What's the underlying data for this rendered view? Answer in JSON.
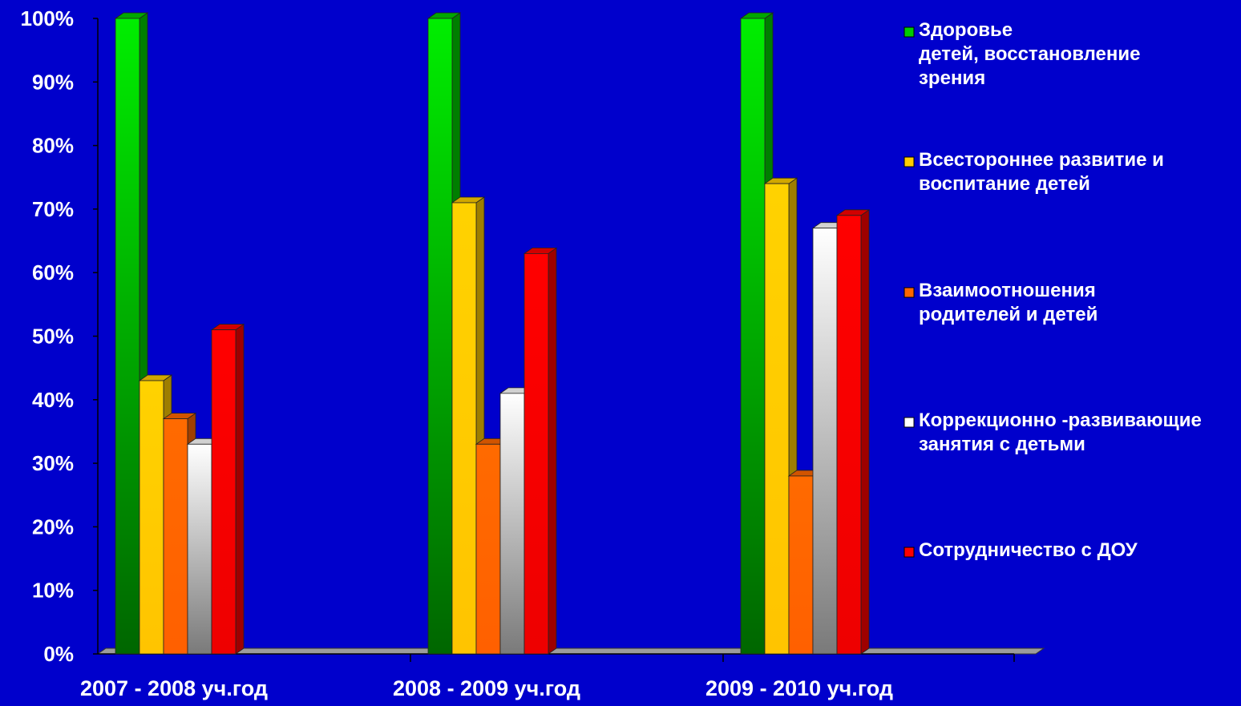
{
  "chart_data": {
    "type": "bar",
    "title": "",
    "xlabel": "",
    "ylabel": "",
    "ylim": [
      0,
      100
    ],
    "yticks": [
      "0%",
      "10%",
      "20%",
      "30%",
      "40%",
      "50%",
      "60%",
      "70%",
      "80%",
      "90%",
      "100%"
    ],
    "categories": [
      "2007 - 2008 уч.год",
      "2008 - 2009 уч.год",
      "2009 - 2010 уч.год"
    ],
    "legend_position": "right",
    "series": [
      {
        "name": "Здоровье детей, восстановление зрения",
        "legend_lines": [
          "Здоровье",
          "детей, восстановление",
          "зрения"
        ],
        "color": "#00CC00",
        "values": [
          100,
          100,
          100
        ]
      },
      {
        "name": "Всестороннее развитие и воспитание детей",
        "legend_lines": [
          "Всестороннее  развитие и",
          "воспитание детей"
        ],
        "color": "#FFCC00",
        "values": [
          43,
          71,
          74
        ]
      },
      {
        "name": "Взаимоотношения родителей и детей",
        "legend_lines": [
          "Взаимоотношения",
          "родителей и детей"
        ],
        "color": "#FF6600",
        "values": [
          37,
          33,
          28
        ]
      },
      {
        "name": "Коррекционно -развивающие занятия с детьми",
        "legend_lines": [
          "Коррекционно -развивающие",
          "занятия с детьми"
        ],
        "color": "#FFFFFF",
        "values": [
          33,
          41,
          67
        ]
      },
      {
        "name": "Сотрудничество с ДОУ",
        "legend_lines": [
          "Сотрудничество с ДОУ"
        ],
        "color": "#FF0000",
        "values": [
          51,
          63,
          69
        ]
      }
    ]
  }
}
